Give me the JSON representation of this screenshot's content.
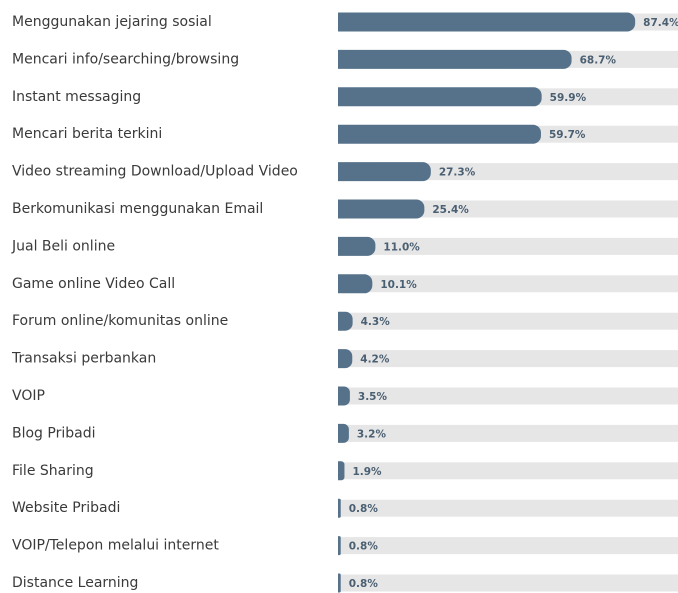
{
  "chart_data": {
    "type": "bar",
    "orientation": "horizontal",
    "categories": [
      "Menggunakan jejaring sosial",
      "Mencari info/searching/browsing",
      "Instant messaging",
      "Mencari berita terkini",
      "Video streaming Download/Upload Video",
      "Berkomunikasi menggunakan Email",
      "Jual Beli online",
      "Game online Video Call",
      "Forum online/komunitas online",
      "Transaksi perbankan",
      "VOIP",
      "Blog Pribadi",
      "File Sharing",
      "Website Pribadi",
      "VOIP/Telepon melalui internet",
      "Distance Learning"
    ],
    "values": [
      87.4,
      68.7,
      59.9,
      59.7,
      27.3,
      25.4,
      11.0,
      10.1,
      4.3,
      4.2,
      3.5,
      3.2,
      1.9,
      0.8,
      0.8,
      0.8
    ],
    "value_labels": [
      "87.4%",
      "68.7%",
      "59.9%",
      "59.7%",
      "27.3%",
      "25.4%",
      "11.0%",
      "10.1%",
      "4.3%",
      "4.2%",
      "3.5%",
      "3.2%",
      "1.9%",
      "0.8%",
      "0.8%",
      "0.8%"
    ],
    "xlim": [
      0,
      100
    ],
    "color": "#56728a",
    "track_color": "#e6e6e6"
  }
}
